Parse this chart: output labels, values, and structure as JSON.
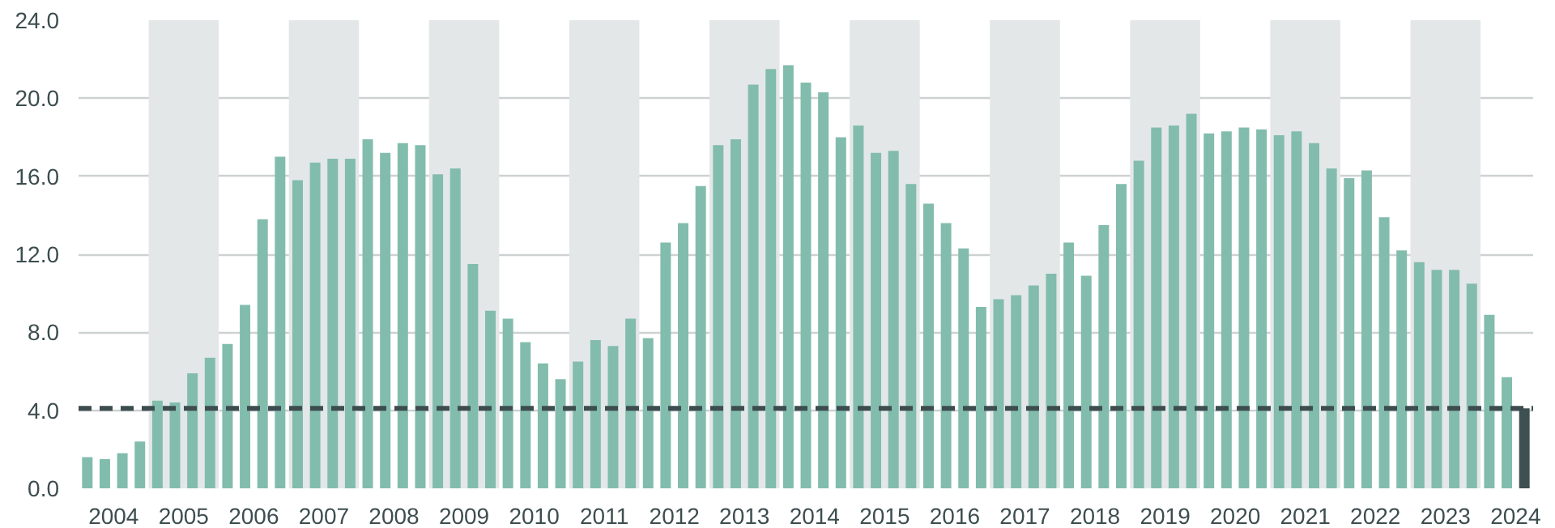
{
  "chart_data": {
    "type": "bar",
    "x": [
      2004.125,
      2004.375,
      2004.625,
      2004.875,
      2005.125,
      2005.375,
      2005.625,
      2005.875,
      2006.125,
      2006.375,
      2006.625,
      2006.875,
      2007.125,
      2007.375,
      2007.625,
      2007.875,
      2008.125,
      2008.375,
      2008.625,
      2008.875,
      2009.125,
      2009.375,
      2009.625,
      2009.875,
      2010.125,
      2010.375,
      2010.625,
      2010.875,
      2011.125,
      2011.375,
      2011.625,
      2011.875,
      2012.125,
      2012.375,
      2012.625,
      2012.875,
      2013.125,
      2013.375,
      2013.625,
      2013.875,
      2014.125,
      2014.375,
      2014.625,
      2014.875,
      2015.125,
      2015.375,
      2015.625,
      2015.875,
      2016.125,
      2016.375,
      2016.625,
      2016.875,
      2017.125,
      2017.375,
      2017.625,
      2017.875,
      2018.125,
      2018.375,
      2018.625,
      2018.875,
      2019.125,
      2019.375,
      2019.625,
      2019.875,
      2020.125,
      2020.375,
      2020.625,
      2020.875,
      2021.125,
      2021.375,
      2021.625,
      2021.875,
      2022.125,
      2022.375,
      2022.625,
      2022.875,
      2023.125,
      2023.375,
      2023.625,
      2023.875,
      2024.125,
      2024.375,
      2024.625
    ],
    "values": [
      1.6,
      1.5,
      1.8,
      2.4,
      4.5,
      4.4,
      5.9,
      6.7,
      7.4,
      9.4,
      13.8,
      17.0,
      15.8,
      16.7,
      16.9,
      16.9,
      17.9,
      17.2,
      17.7,
      17.6,
      16.1,
      16.4,
      11.5,
      9.1,
      8.7,
      7.5,
      6.4,
      5.6,
      6.5,
      7.6,
      7.3,
      8.7,
      7.7,
      12.6,
      13.6,
      15.5,
      17.6,
      17.9,
      20.7,
      21.5,
      21.7,
      20.8,
      20.3,
      18.0,
      18.6,
      17.2,
      17.3,
      15.6,
      14.6,
      13.6,
      12.3,
      9.3,
      9.7,
      9.9,
      10.4,
      11.0,
      12.6,
      10.9,
      13.5,
      15.6,
      16.8,
      18.5,
      18.6,
      19.2,
      18.2,
      18.3,
      18.5,
      18.4,
      18.1,
      18.3,
      17.7,
      16.4,
      15.9,
      16.3,
      13.9,
      12.2,
      11.6,
      11.2,
      11.2,
      10.5,
      8.9,
      5.7,
      4.1
    ],
    "colors": [
      "#82bcad",
      "#82bcad",
      "#82bcad",
      "#82bcad",
      "#82bcad",
      "#82bcad",
      "#82bcad",
      "#82bcad",
      "#82bcad",
      "#82bcad",
      "#82bcad",
      "#82bcad",
      "#82bcad",
      "#82bcad",
      "#82bcad",
      "#82bcad",
      "#82bcad",
      "#82bcad",
      "#82bcad",
      "#82bcad",
      "#82bcad",
      "#82bcad",
      "#82bcad",
      "#82bcad",
      "#82bcad",
      "#82bcad",
      "#82bcad",
      "#82bcad",
      "#82bcad",
      "#82bcad",
      "#82bcad",
      "#82bcad",
      "#82bcad",
      "#82bcad",
      "#82bcad",
      "#82bcad",
      "#82bcad",
      "#82bcad",
      "#82bcad",
      "#82bcad",
      "#82bcad",
      "#82bcad",
      "#82bcad",
      "#82bcad",
      "#82bcad",
      "#82bcad",
      "#82bcad",
      "#82bcad",
      "#82bcad",
      "#82bcad",
      "#82bcad",
      "#82bcad",
      "#82bcad",
      "#82bcad",
      "#82bcad",
      "#82bcad",
      "#82bcad",
      "#82bcad",
      "#82bcad",
      "#82bcad",
      "#82bcad",
      "#82bcad",
      "#82bcad",
      "#82bcad",
      "#82bcad",
      "#82bcad",
      "#82bcad",
      "#82bcad",
      "#82bcad",
      "#82bcad",
      "#82bcad",
      "#82bcad",
      "#82bcad",
      "#82bcad",
      "#82bcad",
      "#82bcad",
      "#82bcad",
      "#82bcad",
      "#82bcad",
      "#82bcad",
      "#82bcad",
      "#82bcad",
      "#3f5052"
    ],
    "xlim": [
      2004.0,
      2024.75
    ],
    "xticks": [
      {
        "value": 2004.5,
        "label": "2004"
      },
      {
        "value": 2005.5,
        "label": "2005"
      },
      {
        "value": 2006.5,
        "label": "2006"
      },
      {
        "value": 2007.5,
        "label": "2007"
      },
      {
        "value": 2008.5,
        "label": "2008"
      },
      {
        "value": 2009.5,
        "label": "2009"
      },
      {
        "value": 2010.5,
        "label": "2010"
      },
      {
        "value": 2011.5,
        "label": "2011"
      },
      {
        "value": 2012.5,
        "label": "2012"
      },
      {
        "value": 2013.5,
        "label": "2013"
      },
      {
        "value": 2014.5,
        "label": "2014"
      },
      {
        "value": 2015.5,
        "label": "2015"
      },
      {
        "value": 2016.5,
        "label": "2016"
      },
      {
        "value": 2017.5,
        "label": "2017"
      },
      {
        "value": 2018.5,
        "label": "2018"
      },
      {
        "value": 2019.5,
        "label": "2019"
      },
      {
        "value": 2020.5,
        "label": "2020"
      },
      {
        "value": 2021.5,
        "label": "2021"
      },
      {
        "value": 2022.5,
        "label": "2022"
      },
      {
        "value": 2023.5,
        "label": "2023"
      },
      {
        "value": 2024.5,
        "label": "2024"
      }
    ],
    "ylim": [
      0,
      24
    ],
    "yticks": [
      {
        "value": 0,
        "label": "0.0"
      },
      {
        "value": 4,
        "label": "4.0"
      },
      {
        "value": 8,
        "label": "8.0"
      },
      {
        "value": 12,
        "label": "12.0"
      },
      {
        "value": 16,
        "label": "16.0"
      },
      {
        "value": 20,
        "label": "20.0"
      },
      {
        "value": 24,
        "label": "24.0"
      }
    ],
    "grid": "y",
    "ref_lines": [
      {
        "axis": "y",
        "value": 4.1,
        "color": "#3d4d4f",
        "line_style": "dashed"
      }
    ],
    "bands": [
      {
        "axis": "x",
        "from": 2005,
        "to": 2006,
        "color": "#e3e7e8"
      },
      {
        "axis": "x",
        "from": 2007,
        "to": 2008,
        "color": "#e3e7e8"
      },
      {
        "axis": "x",
        "from": 2009,
        "to": 2010,
        "color": "#e3e7e8"
      },
      {
        "axis": "x",
        "from": 2011,
        "to": 2012,
        "color": "#e3e7e8"
      },
      {
        "axis": "x",
        "from": 2013,
        "to": 2014,
        "color": "#e3e7e8"
      },
      {
        "axis": "x",
        "from": 2015,
        "to": 2016,
        "color": "#e3e7e8"
      },
      {
        "axis": "x",
        "from": 2017,
        "to": 2018,
        "color": "#e3e7e8"
      },
      {
        "axis": "x",
        "from": 2019,
        "to": 2020,
        "color": "#e3e7e8"
      },
      {
        "axis": "x",
        "from": 2021,
        "to": 2022,
        "color": "#e3e7e8"
      },
      {
        "axis": "x",
        "from": 2023,
        "to": 2024,
        "color": "#e3e7e8"
      }
    ]
  }
}
